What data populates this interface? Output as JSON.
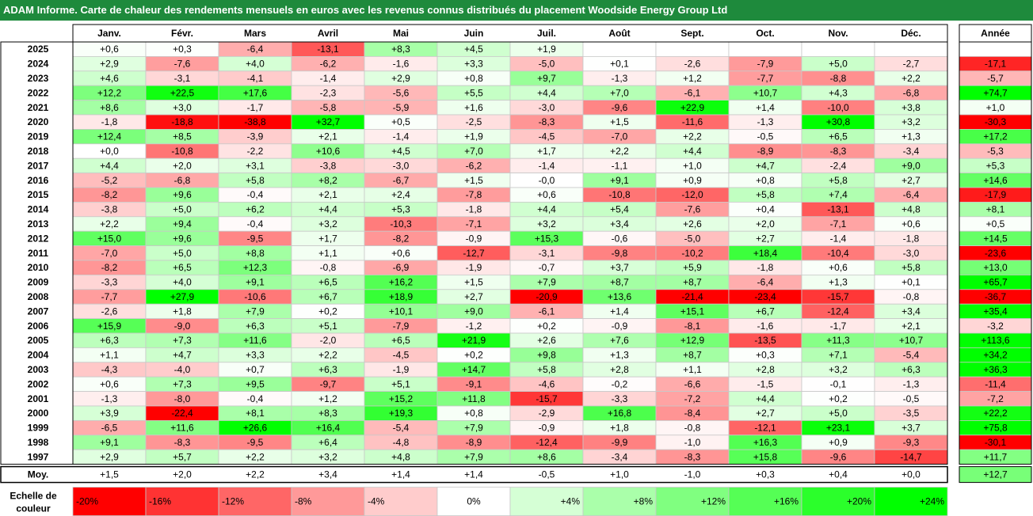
{
  "title": "ADAM Informe. Carte de chaleur des rendements mensuels en euros avec les revenus connus distribués du placement Woodside Energy Group Ltd",
  "chart_data": {
    "type": "heatmap",
    "columns": [
      "Janv.",
      "Févr.",
      "Mars",
      "Avril",
      "Mai",
      "Juin",
      "Juil.",
      "Août",
      "Sept.",
      "Oct.",
      "Nov.",
      "Déc."
    ],
    "year_column_label": "Année",
    "rows": [
      {
        "label": "2025",
        "values": [
          "+0,6",
          "+0,3",
          "-6,4",
          "-13,1",
          "+8,3",
          "+4,5",
          "+1,9",
          "",
          "",
          "",
          "",
          ""
        ],
        "year": ""
      },
      {
        "label": "2024",
        "values": [
          "+2,9",
          "-7,6",
          "+4,0",
          "-6,2",
          "-1,6",
          "+3,3",
          "-5,0",
          "+0,1",
          "-2,6",
          "-7,9",
          "+5,0",
          "-2,7"
        ],
        "year": "-17,1"
      },
      {
        "label": "2023",
        "values": [
          "+4,6",
          "-3,1",
          "-4,1",
          "-1,4",
          "+2,9",
          "+0,8",
          "+9,7",
          "-1,3",
          "+1,2",
          "-7,7",
          "-8,8",
          "+2,2"
        ],
        "year": "-5,7"
      },
      {
        "label": "2022",
        "values": [
          "+12,2",
          "+22,5",
          "+17,6",
          "-2,3",
          "-5,6",
          "+5,5",
          "+4,4",
          "+7,0",
          "-6,1",
          "+10,7",
          "+4,3",
          "-6,8"
        ],
        "year": "+74,7"
      },
      {
        "label": "2021",
        "values": [
          "+8,6",
          "+3,0",
          "-1,7",
          "-5,8",
          "-5,9",
          "+1,6",
          "-3,0",
          "-9,6",
          "+22,9",
          "+1,4",
          "-10,0",
          "+3,8"
        ],
        "year": "+1,0"
      },
      {
        "label": "2020",
        "values": [
          "-1,8",
          "-18,8",
          "-38,8",
          "+32,7",
          "+0,5",
          "-2,5",
          "-8,3",
          "+1,5",
          "-11,6",
          "-1,3",
          "+30,8",
          "+3,2"
        ],
        "year": "-30,3"
      },
      {
        "label": "2019",
        "values": [
          "+12,4",
          "+8,5",
          "-3,9",
          "+2,1",
          "-1,4",
          "+1,9",
          "-4,5",
          "-7,0",
          "+2,2",
          "-0,5",
          "+6,5",
          "+1,3"
        ],
        "year": "+17,2"
      },
      {
        "label": "2018",
        "values": [
          "+0,0",
          "-10,8",
          "-2,2",
          "+10,6",
          "+4,5",
          "+7,0",
          "+1,7",
          "+2,2",
          "+4,4",
          "-8,9",
          "-8,3",
          "-3,4"
        ],
        "year": "-5,3"
      },
      {
        "label": "2017",
        "values": [
          "+4,4",
          "+2,0",
          "+3,1",
          "-3,8",
          "-3,0",
          "-6,2",
          "-1,4",
          "-1,1",
          "+1,0",
          "+4,7",
          "-2,4",
          "+9,0"
        ],
        "year": "+5,3"
      },
      {
        "label": "2016",
        "values": [
          "-5,2",
          "-6,8",
          "+5,8",
          "+8,2",
          "-6,7",
          "+1,5",
          "-0,0",
          "+9,1",
          "+0,9",
          "+0,8",
          "+5,8",
          "+2,7"
        ],
        "year": "+14,6"
      },
      {
        "label": "2015",
        "values": [
          "-8,2",
          "+9,6",
          "-0,4",
          "+2,1",
          "+2,4",
          "-7,8",
          "+0,6",
          "-10,8",
          "-12,0",
          "+5,8",
          "+7,4",
          "-6,4"
        ],
        "year": "-17,9"
      },
      {
        "label": "2014",
        "values": [
          "-3,8",
          "+5,0",
          "+6,2",
          "+4,4",
          "+5,3",
          "-1,8",
          "+4,4",
          "+5,4",
          "-7,6",
          "+0,4",
          "-13,1",
          "+4,8"
        ],
        "year": "+8,1"
      },
      {
        "label": "2013",
        "values": [
          "+2,2",
          "+9,4",
          "-0,4",
          "+3,2",
          "-10,3",
          "-7,1",
          "+3,2",
          "+3,4",
          "+2,6",
          "+2,0",
          "-7,1",
          "+0,6"
        ],
        "year": "+0,5"
      },
      {
        "label": "2012",
        "values": [
          "+15,0",
          "+9,6",
          "-9,5",
          "+1,7",
          "-8,2",
          "-0,9",
          "+15,3",
          "-0,6",
          "-5,0",
          "+2,7",
          "-1,4",
          "-1,8"
        ],
        "year": "+14,5"
      },
      {
        "label": "2011",
        "values": [
          "-7,0",
          "+5,0",
          "+8,8",
          "+1,1",
          "+0,6",
          "-12,7",
          "-3,1",
          "-9,8",
          "-10,2",
          "+18,4",
          "-10,4",
          "-3,0"
        ],
        "year": "-23,6"
      },
      {
        "label": "2010",
        "values": [
          "-8,2",
          "+6,5",
          "+12,3",
          "-0,8",
          "-6,9",
          "-1,9",
          "-0,7",
          "+3,7",
          "+5,9",
          "-1,8",
          "+0,6",
          "+5,8"
        ],
        "year": "+13,0"
      },
      {
        "label": "2009",
        "values": [
          "-3,3",
          "+4,0",
          "+9,1",
          "+6,5",
          "+16,2",
          "+1,5",
          "+7,9",
          "+8,7",
          "+8,7",
          "-6,4",
          "+1,3",
          "+0,1"
        ],
        "year": "+65,7"
      },
      {
        "label": "2008",
        "values": [
          "-7,7",
          "+27,9",
          "-10,6",
          "+6,7",
          "+18,9",
          "+2,7",
          "-20,9",
          "+13,6",
          "-21,4",
          "-23,4",
          "-15,7",
          "-0,8"
        ],
        "year": "-36,7"
      },
      {
        "label": "2007",
        "values": [
          "-2,6",
          "+1,8",
          "+7,9",
          "+0,2",
          "+10,1",
          "+9,0",
          "-6,1",
          "+1,4",
          "+15,1",
          "+6,7",
          "-12,4",
          "+3,4"
        ],
        "year": "+35,4"
      },
      {
        "label": "2006",
        "values": [
          "+15,9",
          "-9,0",
          "+6,3",
          "+5,1",
          "-7,9",
          "-1,2",
          "+0,2",
          "-0,9",
          "-8,1",
          "-1,6",
          "-1,7",
          "+2,1"
        ],
        "year": "-3,2"
      },
      {
        "label": "2005",
        "values": [
          "+6,3",
          "+7,3",
          "+11,6",
          "-2,0",
          "+6,5",
          "+21,9",
          "+2,6",
          "+7,6",
          "+12,9",
          "-13,5",
          "+11,3",
          "+10,7"
        ],
        "year": "+113,6"
      },
      {
        "label": "2004",
        "values": [
          "+1,1",
          "+4,7",
          "+3,3",
          "+2,2",
          "-4,5",
          "+0,2",
          "+9,8",
          "+1,3",
          "+8,7",
          "+0,3",
          "+7,1",
          "-5,4"
        ],
        "year": "+34,2"
      },
      {
        "label": "2003",
        "values": [
          "-4,3",
          "-4,0",
          "+0,7",
          "+6,3",
          "-1,9",
          "+14,7",
          "+5,8",
          "+2,8",
          "+1,1",
          "+2,8",
          "+3,2",
          "+6,3"
        ],
        "year": "+36,3"
      },
      {
        "label": "2002",
        "values": [
          "+0,6",
          "+7,3",
          "+9,5",
          "-9,7",
          "+5,1",
          "-9,1",
          "-4,6",
          "-0,2",
          "-6,6",
          "-1,5",
          "-0,1",
          "-1,3"
        ],
        "year": "-11,4"
      },
      {
        "label": "2001",
        "values": [
          "-1,3",
          "-8,0",
          "-0,4",
          "+1,2",
          "+15,2",
          "+11,8",
          "-15,7",
          "-3,3",
          "-7,2",
          "+4,4",
          "+0,2",
          "-0,5"
        ],
        "year": "-7,2"
      },
      {
        "label": "2000",
        "values": [
          "+3,9",
          "-22,4",
          "+8,1",
          "+8,3",
          "+19,3",
          "+0,8",
          "-2,9",
          "+16,8",
          "-8,4",
          "+2,7",
          "+5,0",
          "-3,5"
        ],
        "year": "+22,2"
      },
      {
        "label": "1999",
        "values": [
          "-6,5",
          "+11,6",
          "+26,6",
          "+16,4",
          "-5,4",
          "+7,9",
          "-0,9",
          "+1,8",
          "-0,8",
          "-12,1",
          "+23,1",
          "+3,7"
        ],
        "year": "+75,8"
      },
      {
        "label": "1998",
        "values": [
          "+9,1",
          "-8,3",
          "-9,5",
          "+6,4",
          "-4,8",
          "-8,9",
          "-12,4",
          "-9,9",
          "-1,0",
          "+16,3",
          "+0,9",
          "-9,3"
        ],
        "year": "-30,1"
      },
      {
        "label": "1997",
        "values": [
          "+2,9",
          "+5,7",
          "+2,2",
          "+3,2",
          "+4,8",
          "+7,9",
          "+8,6",
          "-3,4",
          "-8,3",
          "+15,8",
          "-9,6",
          "-14,7"
        ],
        "year": "+11,7"
      }
    ],
    "average": {
      "label": "Moy.",
      "values": [
        "+1,5",
        "+2,0",
        "+2,2",
        "+3,4",
        "+1,4",
        "+1,4",
        "-0,5",
        "+1,0",
        "-1,0",
        "+0,3",
        "+0,4",
        "+0,0"
      ],
      "year": "+12,7"
    },
    "color_scale": {
      "label_line1": "Echelle de",
      "label_line2": "couleur",
      "labels": [
        "-20%",
        "-16%",
        "-12%",
        "-8%",
        "-4%",
        "0%",
        "+4%",
        "+8%",
        "+12%",
        "+16%",
        "+20%",
        "+24%"
      ],
      "values": [
        -20,
        -16,
        -12,
        -8,
        -4,
        0,
        4,
        8,
        12,
        16,
        20,
        24
      ],
      "colors": {
        "negative_max": "#ff0000",
        "zero": "#ffffff",
        "positive_max": "#00ff00"
      }
    }
  }
}
